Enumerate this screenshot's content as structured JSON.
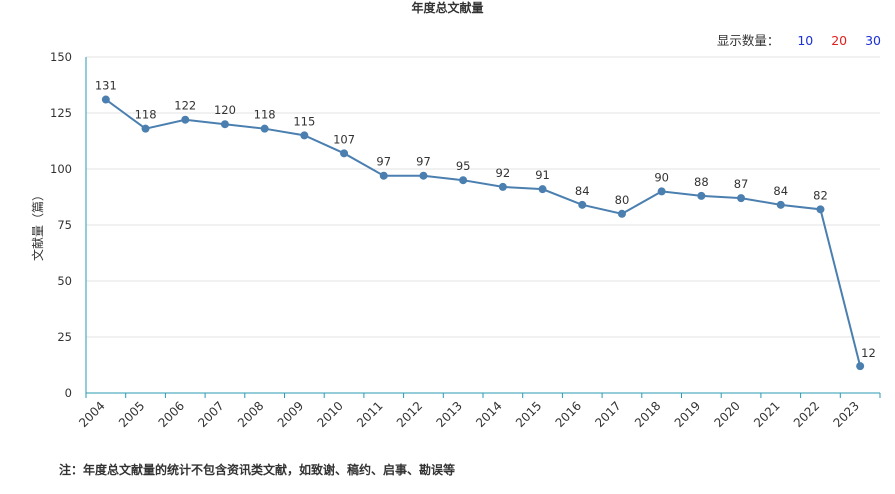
{
  "title": "年度总文献量",
  "display_count": {
    "label": "显示数量：",
    "options": [
      "10",
      "20",
      "30"
    ]
  },
  "footnote": "注：年度总文献量的统计不包含资讯类文献，如致谢、稿约、启事、勘误等",
  "colors": {
    "line": "#4a7fb0",
    "grid": "#e3e3e3",
    "axis": "#2a9bb0",
    "text": "#333333"
  },
  "chart_data": {
    "type": "line",
    "title": "年度总文献量",
    "xlabel": "",
    "ylabel": "文献量（篇）",
    "ylim": [
      0,
      150
    ],
    "yticks": [
      0,
      25,
      50,
      75,
      100,
      125,
      150
    ],
    "grid": true,
    "categories": [
      "2004",
      "2005",
      "2006",
      "2007",
      "2008",
      "2009",
      "2010",
      "2011",
      "2012",
      "2013",
      "2014",
      "2015",
      "2016",
      "2017",
      "2018",
      "2019",
      "2020",
      "2021",
      "2022",
      "2023"
    ],
    "values": [
      131,
      118,
      122,
      120,
      118,
      115,
      107,
      97,
      97,
      95,
      92,
      91,
      84,
      80,
      90,
      88,
      87,
      84,
      82,
      12
    ]
  }
}
